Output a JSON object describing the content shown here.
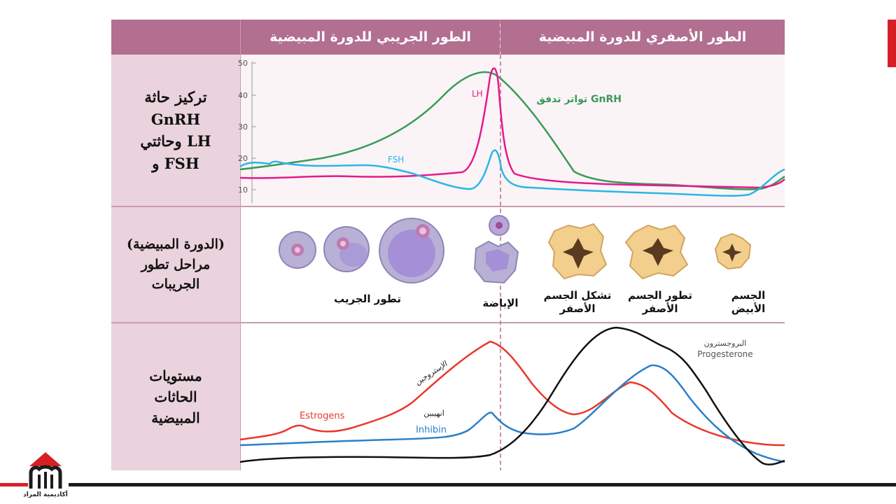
{
  "header": {
    "left": "الطور الجريبي للدورة المبيضية",
    "right": "الطور الأصفري للدورة المبيضية"
  },
  "rows": {
    "hormones": [
      "تركيز حاثة",
      "GnRH",
      "وحاثتي LH",
      "و FSH"
    ],
    "follicle": [
      "(الدورة المبيضية)",
      "مراحل تطور",
      "الجريبات"
    ],
    "ovarian": [
      "مستويات",
      "الحاثات",
      "المبيضية"
    ]
  },
  "top_chart": {
    "y_ticks": [
      "50",
      "40",
      "30",
      "20",
      "10"
    ],
    "lh_label": "LH",
    "fsh_label": "FSH",
    "gnrh_label": "تواتر تدفق GnRH"
  },
  "stages": {
    "follicle_growth": "تطور الجريب",
    "ovulation": "الإباضة",
    "corpus_formation": [
      "تشكل الجسم",
      "الأصفر"
    ],
    "corpus_development": [
      "تطور الجسم",
      "الأصفر"
    ],
    "corpus_albicans": [
      "الجسم",
      "الأبيض"
    ]
  },
  "bottom_chart": {
    "estrogen_ar": "الإستروجين",
    "estrogen_en": "Estrogens",
    "inhibin_ar": "انهيبين",
    "inhibin_en": "Inhibin",
    "progesterone_ar": "البروجسترون",
    "progesterone_en": "Progesterone"
  },
  "logo": {
    "text": "أكاديمية المراد"
  },
  "colors": {
    "header": "#b26f8f",
    "label_bg": "#ead3dc",
    "gnrh": "#3a9a5a",
    "lh": "#e6198a",
    "fsh": "#2bb5e6",
    "estrogen": "#e8392c",
    "inhibin": "#2a7fc8",
    "progesterone": "#111111",
    "accent_red": "#d62027"
  }
}
